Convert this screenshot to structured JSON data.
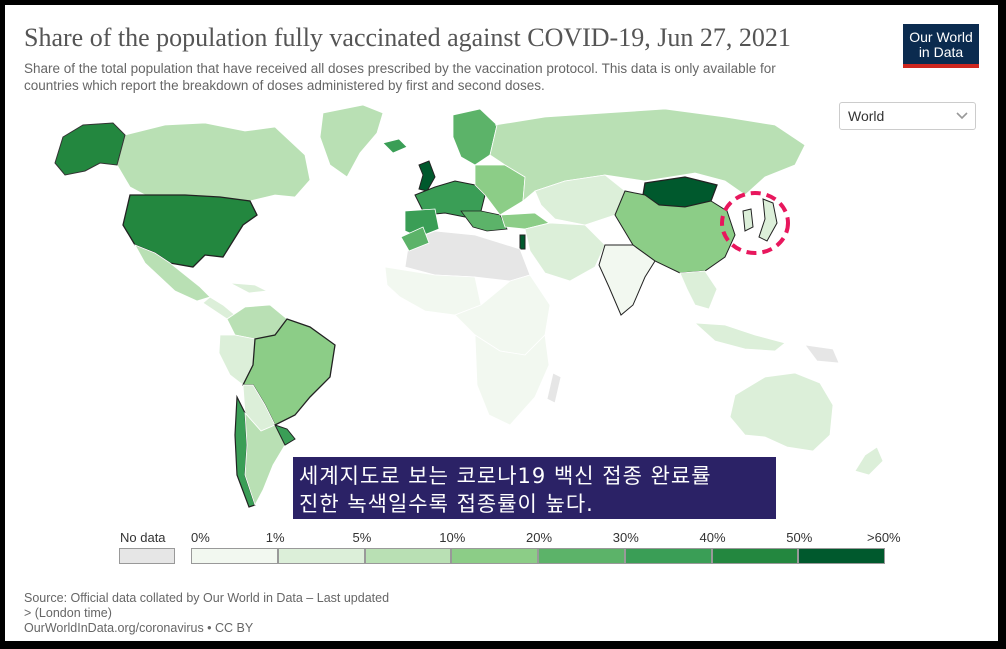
{
  "title": "Share of the population fully vaccinated against COVID-19, Jun 27, 2021",
  "subtitle": "Share of the total population that have received all doses prescribed by the vaccination protocol. This data is only available for countries which report the breakdown of doses administered by first and second doses.",
  "logo": {
    "line1": "Our World",
    "line2": "in Data"
  },
  "region_selector": {
    "value": "World"
  },
  "caption": {
    "line1": "세계지도로 보는 코로나19 백신 접종 완료률",
    "line2": "진한 녹색일수록 접종률이 높다."
  },
  "legend": {
    "no_data_label": "No data",
    "no_data_color": "#e6e6e6",
    "ticks": [
      "0%",
      "1%",
      "5%",
      "10%",
      "20%",
      "30%",
      "40%",
      "50%",
      ">60%"
    ],
    "bin_colors": [
      "#f2f8f0",
      "#dcefd9",
      "#b9e0b4",
      "#8ccd87",
      "#5cb369",
      "#3a9e56",
      "#23873f",
      "#00592d"
    ]
  },
  "source": {
    "line1": "Source: Official data collated by Our World in Data – Last updated",
    "line2": "> (London time)",
    "line3": "OurWorldInData.org/coronavirus • CC BY"
  },
  "highlight_color": "#e8175d"
}
